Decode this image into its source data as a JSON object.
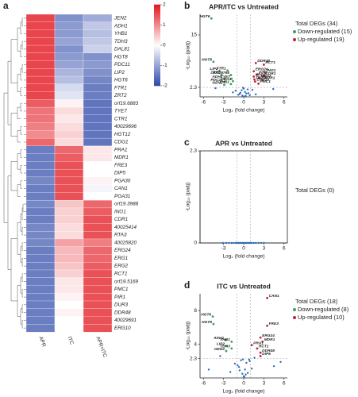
{
  "chart_data": [
    {
      "type": "heatmap",
      "panel": "a",
      "rows": [
        "JEN2",
        "ADH1",
        "YHB1",
        "TDH3",
        "DAL81",
        "HGT8",
        "PDC11",
        "LIP2",
        "HGT6",
        "FTR1",
        "ZRT2",
        "orf19.6883",
        "TYE7",
        "CTR1",
        "40029696",
        "HGT12",
        "CDG1",
        "PRA1",
        "MDR1",
        "FRE3",
        "DIP5",
        "PGA30",
        "CAN1",
        "PGA31",
        "orf19.3988",
        "INO1",
        "CDR1",
        "40025414",
        "RTA3",
        "40025820",
        "ERG24",
        "ERG1",
        "ERG2",
        "RCT1",
        "orf19.5169",
        "PMC1",
        "PIR1",
        "DUR3",
        "DDR48",
        "40029691",
        "ERG10"
      ],
      "columns": [
        "APR",
        "ITC",
        "APR+ITC"
      ],
      "values": [
        [
          1.6,
          -1.2,
          -0.9
        ],
        [
          1.6,
          -1.1,
          -0.6
        ],
        [
          1.6,
          -1.1,
          -0.7
        ],
        [
          1.6,
          -1.0,
          -0.6
        ],
        [
          1.6,
          -1.2,
          -0.5
        ],
        [
          1.6,
          -1.1,
          -1.2
        ],
        [
          1.6,
          -1.0,
          -1.1
        ],
        [
          1.6,
          -0.8,
          -1.2
        ],
        [
          1.6,
          -0.7,
          -1.3
        ],
        [
          1.6,
          -0.4,
          -1.4
        ],
        [
          1.6,
          -0.3,
          -1.4
        ],
        [
          1.4,
          0.1,
          -1.5
        ],
        [
          1.2,
          0.3,
          -1.5
        ],
        [
          1.2,
          0.2,
          -1.5
        ],
        [
          1.1,
          0.3,
          -1.5
        ],
        [
          1.0,
          0.4,
          -1.5
        ],
        [
          1.3,
          0.3,
          -1.5
        ],
        [
          -1.4,
          1.3,
          0.2
        ],
        [
          -1.4,
          1.4,
          0.2
        ],
        [
          -1.4,
          1.5,
          0.0
        ],
        [
          -1.4,
          1.5,
          0.0
        ],
        [
          -1.3,
          1.5,
          0.1
        ],
        [
          -1.4,
          1.5,
          -0.1
        ],
        [
          -1.4,
          1.5,
          0.0
        ],
        [
          -1.3,
          0.5,
          1.3
        ],
        [
          -1.4,
          0.4,
          1.4
        ],
        [
          -1.4,
          0.4,
          1.5
        ],
        [
          -1.3,
          0.3,
          1.5
        ],
        [
          -1.3,
          0.3,
          1.5
        ],
        [
          -1.3,
          0.8,
          1.1
        ],
        [
          -1.4,
          0.6,
          1.3
        ],
        [
          -1.4,
          0.6,
          1.3
        ],
        [
          -1.4,
          0.5,
          1.4
        ],
        [
          -1.4,
          0.4,
          1.5
        ],
        [
          -1.4,
          0.2,
          1.5
        ],
        [
          -1.4,
          0.2,
          1.5
        ],
        [
          -1.4,
          0.1,
          1.5
        ],
        [
          -1.4,
          0.0,
          1.5
        ],
        [
          -1.4,
          0.1,
          1.5
        ],
        [
          -1.4,
          0.0,
          1.5
        ],
        [
          -1.4,
          0.0,
          1.5
        ]
      ],
      "zlim": [
        -2,
        2
      ],
      "zticks": [
        2,
        1,
        0,
        -1,
        -2
      ],
      "colors": [
        "#2c47a8",
        "#ffffff",
        "#e3171f"
      ]
    },
    {
      "type": "scatter",
      "panel": "b",
      "title": "APR/ITC vs Untreated",
      "xlabel": "Log₂ (fold change)",
      "ylabel": "-Log₁₀ (padj)",
      "xlim": [
        -6.5,
        6.5
      ],
      "ylim": [
        0,
        20
      ],
      "xticks": [
        -6,
        -3,
        0,
        3,
        6
      ],
      "yticks": [
        2.3,
        15
      ],
      "vlines": [
        -1,
        1
      ],
      "hlines": [
        2.3
      ],
      "legend_title": "Total DEGs (34)",
      "series": [
        {
          "name": "Down-regulated (15)",
          "color": "#3aa35c",
          "labels": [
            "HGT6",
            "HGT8",
            "LIP2",
            "FTR1",
            "ZRT2",
            "40029765",
            "ADH1",
            "TYE7",
            "PDC11",
            "CDG1",
            "GEN2",
            "YHB1"
          ],
          "x": [
            -4.8,
            -4.5,
            -3.6,
            -2.4,
            -3.3,
            -1.9,
            -2.9,
            -1.8,
            -2.9,
            -1.6,
            -2.9,
            -1.9
          ],
          "values": [
            19,
            8.5,
            6.3,
            6.4,
            5.4,
            5.3,
            4.4,
            4.4,
            3.6,
            3.8,
            2.9,
            3.1
          ]
        },
        {
          "name": "Up-regulated (19)",
          "color": "#c0243a",
          "labels": [
            "DDR48",
            "RCT1",
            "ERG24",
            "INO1",
            "PIR1",
            "CDR1",
            "ERG1",
            "ERG2",
            "DUR3",
            "MDR1",
            "ERG10",
            "PMC1"
          ],
          "x": [
            1.8,
            3.0,
            1.5,
            3.2,
            2.0,
            3.0,
            1.5,
            2.3,
            1.6,
            2.8,
            1.7,
            2.2
          ],
          "values": [
            8.2,
            7.8,
            6.2,
            5.9,
            5.4,
            5.1,
            4.9,
            4.6,
            4.2,
            4.1,
            3.7,
            3.2
          ]
        },
        {
          "color": "#2f6db5",
          "x": [
            -0.8,
            -0.5,
            -0.3,
            0,
            0.2,
            0.4,
            0.6,
            0.9,
            -1.2,
            1.3,
            -0.2,
            0.3,
            -0.6,
            0.7,
            -4.2,
            4.4,
            -1.6,
            1.8,
            0.1,
            -0.1
          ],
          "values": [
            0.5,
            1.0,
            1.6,
            2.0,
            1.2,
            0.8,
            1.8,
            0.4,
            1.5,
            1.7,
            0.3,
            0.2,
            0.7,
            0.9,
            2.1,
            1.9,
            1.1,
            0.6,
            0.1,
            2.2
          ]
        }
      ]
    },
    {
      "type": "scatter",
      "panel": "c",
      "title": "APR vs Untreated",
      "xlabel": "Log₂ (fold change)",
      "ylabel": "-Log₁₀ (padj)",
      "xlim": [
        -6.5,
        6.5
      ],
      "ylim": [
        0,
        2.3
      ],
      "xticks": [
        -3,
        0,
        3,
        6
      ],
      "yticks": [
        0,
        2.3
      ],
      "vlines": [
        -1,
        1
      ],
      "box": true,
      "legend_title": "Total DEGs (0)",
      "series": [
        {
          "color": "#2f6db5",
          "x": [
            -3.1,
            -2.6,
            -2.2,
            -1.8,
            -1.5,
            -1.2,
            -1.0,
            -0.8,
            -0.6,
            -0.4,
            -0.2,
            0,
            0.2,
            0.4,
            0.6,
            0.8,
            1.0,
            1.2,
            1.5,
            1.8,
            2.2,
            2.6,
            3.0
          ],
          "values": [
            0,
            0,
            0,
            0,
            0,
            0,
            0,
            0,
            0,
            0,
            0,
            0,
            0,
            0,
            0,
            0,
            0,
            0,
            0,
            0,
            0,
            0,
            0
          ]
        }
      ]
    },
    {
      "type": "scatter",
      "panel": "d",
      "title": "ITC vs Untreated",
      "xlabel": "Log₂ (fold change)",
      "ylabel": "-Log₁₀ (padj)",
      "xlim": [
        -6.5,
        6.5
      ],
      "ylim": [
        0,
        10
      ],
      "xticks": [
        -6,
        -3,
        0,
        3,
        6
      ],
      "yticks": [
        2.3,
        4,
        8
      ],
      "vlines": [
        -1,
        1
      ],
      "hlines": [
        2.3
      ],
      "legend_title": "Total DEGs (18)",
      "series": [
        {
          "name": "Down-regulated (8)",
          "color": "#3aa35c",
          "labels": [
            "HGT6",
            "HGT8",
            "ADH1",
            "YHB1",
            "LIP2",
            "TDH3",
            "GEN2"
          ],
          "x": [
            -4.6,
            -4.5,
            -2.7,
            -1.8,
            -2.6,
            -1.8,
            -2.6
          ],
          "values": [
            7.3,
            6.4,
            4.5,
            4.3,
            3.8,
            3.5,
            3.2
          ]
        },
        {
          "name": "Up-regulated (10)",
          "color": "#c0243a",
          "labels": [
            "CAN1",
            "FRE3",
            "ERG24",
            "MDR1",
            "PRA1",
            "RCT1",
            "DDR48",
            "DIP5"
          ],
          "x": [
            3.5,
            3.5,
            2.5,
            2.8,
            1.2,
            2.0,
            2.5,
            2.5
          ],
          "values": [
            9.5,
            6.2,
            4.8,
            4.3,
            3.9,
            3.5,
            3.0,
            2.6
          ]
        },
        {
          "color": "#2f6db5",
          "x": [
            -0.9,
            -0.6,
            -0.4,
            -0.2,
            0,
            0.2,
            0.4,
            0.6,
            0.9,
            -1.3,
            1.2,
            -0.1,
            0.3,
            -0.7,
            0.8,
            -3.5,
            4.5,
            -5.2,
            5.5,
            -2.0,
            1.6,
            0.1
          ],
          "values": [
            1.5,
            0.9,
            2.1,
            0.5,
            0.2,
            1.0,
            1.8,
            0.6,
            2.0,
            1.7,
            1.1,
            2.2,
            0.4,
            1.3,
            2.2,
            2.6,
            1.4,
            1.0,
            1.9,
            0.7,
            2.4,
            0.1
          ]
        }
      ]
    }
  ]
}
